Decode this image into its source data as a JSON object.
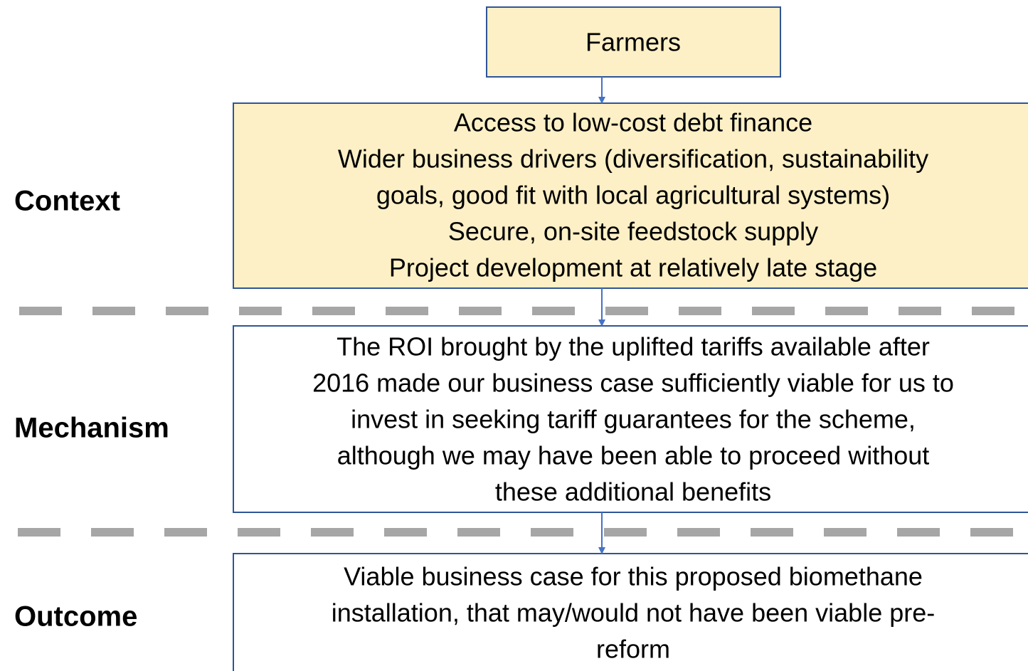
{
  "nodes": [
    {
      "label": "Farmers"
    },
    {
      "lines": [
        "Access to low-cost debt finance",
        "Wider business drivers (diversification, sustainability",
        "goals, good fit with local agricultural systems)",
        "Secure, on-site feedstock supply",
        "Project development at relatively late stage"
      ]
    },
    {
      "lines": [
        "The ROI brought by the uplifted tariffs available after",
        "2016 made our business case sufficiently viable for us to",
        "invest in seeking tariff guarantees for the scheme,",
        "although we may have been able to proceed without",
        "these additional benefits"
      ]
    },
    {
      "lines": [
        "Viable business case for this proposed biomethane",
        "installation, that may/would not have been viable pre-",
        "reform"
      ]
    }
  ],
  "rows": [
    "Context",
    "Mechanism",
    "Outcome"
  ]
}
